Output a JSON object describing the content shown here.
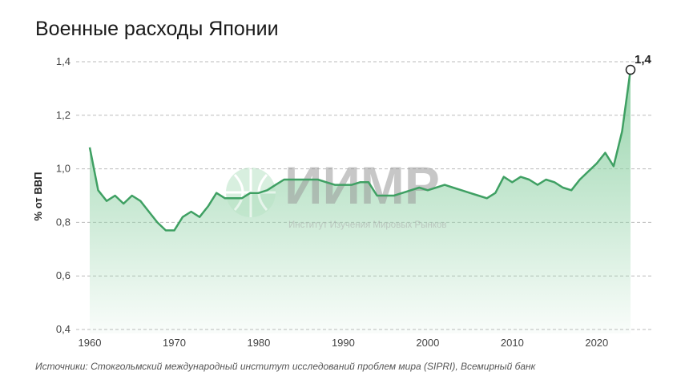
{
  "title": "Военные расходы Японии",
  "source": "Источники: Стокгольмский международный институт исследований проблем мира (SIPRI), Всемирный банк",
  "watermark": {
    "name": "ИИМР",
    "subtitle": "Институт Изучения Мировых Рынков"
  },
  "chart_data": {
    "type": "area",
    "title": "Военные расходы Японии",
    "xlabel": "",
    "ylabel": "% от ВВП",
    "xlim": [
      1960,
      2024
    ],
    "ylim": [
      0.4,
      1.4
    ],
    "xticks": [
      1960,
      1970,
      1980,
      1990,
      2000,
      2010,
      2020
    ],
    "yticks": [
      "0,4",
      "0,6",
      "0,8",
      "1,0",
      "1,2",
      "1,4"
    ],
    "grid": "horizontal dashed",
    "line_color": "#3fa063",
    "fill_color": "#a8dcb8",
    "annotation": {
      "x": 2024,
      "label": "1,4"
    },
    "x": [
      1960,
      1961,
      1962,
      1963,
      1964,
      1965,
      1966,
      1967,
      1968,
      1969,
      1970,
      1971,
      1972,
      1973,
      1974,
      1975,
      1976,
      1977,
      1978,
      1979,
      1980,
      1981,
      1982,
      1983,
      1984,
      1985,
      1986,
      1987,
      1988,
      1989,
      1990,
      1991,
      1992,
      1993,
      1994,
      1995,
      1996,
      1997,
      1998,
      1999,
      2000,
      2001,
      2002,
      2003,
      2004,
      2005,
      2006,
      2007,
      2008,
      2009,
      2010,
      2011,
      2012,
      2013,
      2014,
      2015,
      2016,
      2017,
      2018,
      2019,
      2020,
      2021,
      2022,
      2023,
      2024
    ],
    "values": [
      1.08,
      0.92,
      0.88,
      0.9,
      0.87,
      0.9,
      0.88,
      0.84,
      0.8,
      0.77,
      0.77,
      0.82,
      0.84,
      0.82,
      0.86,
      0.91,
      0.89,
      0.89,
      0.89,
      0.91,
      0.91,
      0.92,
      0.94,
      0.96,
      0.96,
      0.96,
      0.96,
      0.96,
      0.95,
      0.94,
      0.94,
      0.94,
      0.95,
      0.95,
      0.9,
      0.9,
      0.9,
      0.91,
      0.92,
      0.93,
      0.92,
      0.93,
      0.94,
      0.93,
      0.92,
      0.91,
      0.9,
      0.89,
      0.91,
      0.97,
      0.95,
      0.97,
      0.96,
      0.94,
      0.96,
      0.95,
      0.93,
      0.92,
      0.96,
      0.99,
      1.02,
      1.06,
      1.01,
      1.14,
      1.37
    ]
  }
}
